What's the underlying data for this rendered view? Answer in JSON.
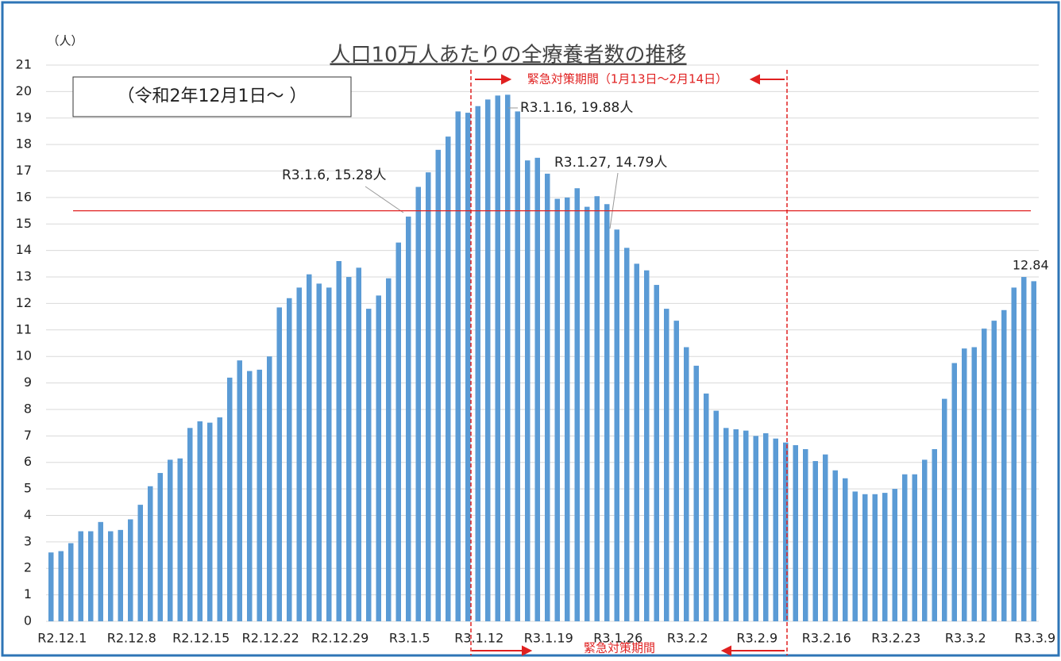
{
  "chart_data": {
    "type": "bar",
    "title": "人口10万人あたりの全療養者数の推移",
    "unit_label": "（人）",
    "subtitle": "（令和2年12月1日～ ）",
    "period_label_top": "緊急対策期間（1月13日～2月14日）",
    "period_label_bottom": "緊急対策期間",
    "annotations": [
      "R3.1.16, 19.88人",
      "R3.1.6, 15.28人",
      "R3.1.27, 14.79人"
    ],
    "color": "#5b9bd5",
    "reference_line": 15.5,
    "reference_color": "#e02020",
    "grid": true,
    "ylim": [
      0,
      21
    ],
    "yticks": [
      0,
      1,
      2,
      3,
      4,
      5,
      6,
      7,
      8,
      9,
      10,
      11,
      12,
      13,
      14,
      15,
      16,
      17,
      18,
      19,
      20,
      21
    ],
    "categories": [
      "R2.12.1",
      null,
      null,
      null,
      null,
      null,
      null,
      "R2.12.8",
      null,
      null,
      null,
      null,
      null,
      null,
      "R2.12.15",
      null,
      null,
      null,
      null,
      null,
      null,
      "R2.12.22",
      null,
      null,
      null,
      null,
      null,
      null,
      "R2.12.29",
      null,
      null,
      null,
      null,
      null,
      null,
      "R3.1.5",
      null,
      null,
      null,
      null,
      null,
      null,
      "R3.1.12",
      null,
      null,
      null,
      null,
      null,
      null,
      "R3.1.19",
      null,
      null,
      null,
      null,
      null,
      null,
      "R3.1.26",
      null,
      null,
      null,
      null,
      null,
      null,
      "R3.2.2",
      null,
      null,
      null,
      null,
      null,
      null,
      "R3.2.9",
      null,
      null,
      null,
      null,
      null,
      null,
      "R3.2.16",
      null,
      null,
      null,
      null,
      null,
      null,
      "R3.2.23",
      null,
      null,
      null,
      null,
      null,
      null,
      "R3.3.2",
      null,
      null,
      null,
      null,
      null,
      null,
      "R3.3.9",
      null
    ],
    "values": [
      2.6,
      2.65,
      2.95,
      3.4,
      3.4,
      3.75,
      3.4,
      3.45,
      3.85,
      4.4,
      5.1,
      5.6,
      6.1,
      6.15,
      7.3,
      7.55,
      7.5,
      7.7,
      9.2,
      9.85,
      9.45,
      9.5,
      10.0,
      11.85,
      12.2,
      12.6,
      13.1,
      12.75,
      12.6,
      13.6,
      13.0,
      13.35,
      11.8,
      12.3,
      12.95,
      14.3,
      15.28,
      16.4,
      16.95,
      17.8,
      18.3,
      19.25,
      19.2,
      19.45,
      19.7,
      19.85,
      19.88,
      19.25,
      17.4,
      17.5,
      16.9,
      15.95,
      16.0,
      16.35,
      15.65,
      16.05,
      15.75,
      14.79,
      14.1,
      13.5,
      13.25,
      12.7,
      11.8,
      11.35,
      10.35,
      9.65,
      8.6,
      7.95,
      7.3,
      7.25,
      7.2,
      7.0,
      7.1,
      6.9,
      6.75,
      6.65,
      6.5,
      6.05,
      6.3,
      5.7,
      5.4,
      4.9,
      4.8,
      4.8,
      4.85,
      5.0,
      5.55,
      5.55,
      6.1,
      6.5,
      8.4,
      9.75,
      10.3,
      10.35,
      11.05,
      11.35,
      11.75,
      12.6,
      13.0,
      12.84
    ]
  }
}
